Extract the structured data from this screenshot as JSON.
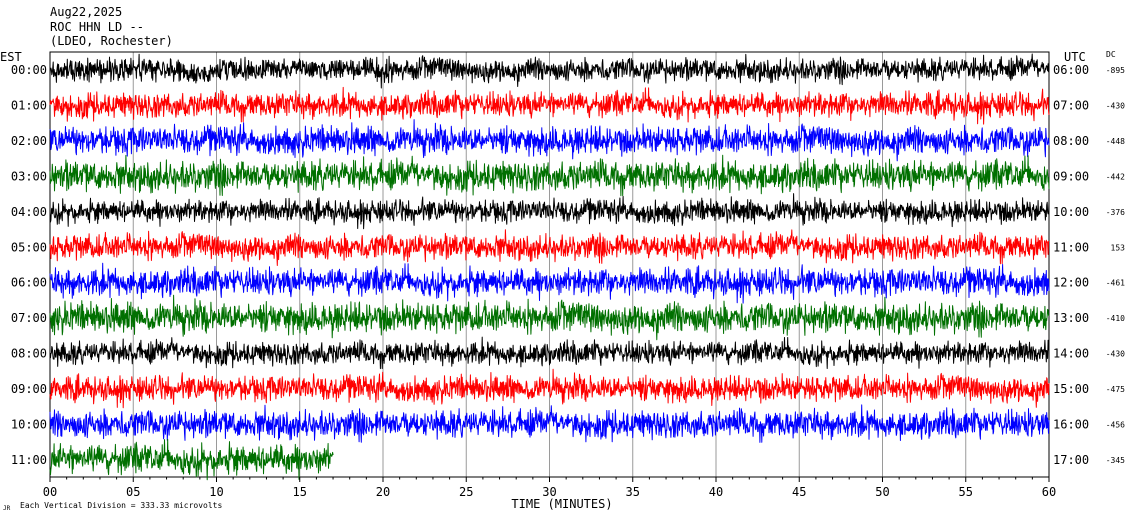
{
  "header": {
    "date": "Aug22,2025",
    "station": "ROC HHN LD --",
    "network": "(LDEO, Rochester)"
  },
  "labels": {
    "left_tz": "EST",
    "right_tz": "UTC",
    "dc": "DC",
    "x_axis": "TIME (MINUTES)",
    "scale_note": "Each Vertical Division = 333.33 microvolts",
    "corner_mark": "JR"
  },
  "chart_data": {
    "type": "line",
    "title": "ROC HHN LD --",
    "xlabel": "TIME (MINUTES)",
    "xlim": [
      0,
      60
    ],
    "x_ticks": [
      "00",
      "05",
      "10",
      "15",
      "20",
      "25",
      "30",
      "35",
      "40",
      "45",
      "50",
      "55",
      "60"
    ],
    "grid": true,
    "series": [
      {
        "left": "00:00",
        "right": "06:00",
        "dc": "-895",
        "color": "#000000",
        "extent_minutes": 60
      },
      {
        "left": "01:00",
        "right": "07:00",
        "dc": "-430",
        "color": "#ff0000",
        "extent_minutes": 60
      },
      {
        "left": "02:00",
        "right": "08:00",
        "dc": "-448",
        "color": "#0000ff",
        "extent_minutes": 60
      },
      {
        "left": "03:00",
        "right": "09:00",
        "dc": "-442",
        "color": "#007000",
        "extent_minutes": 60
      },
      {
        "left": "04:00",
        "right": "10:00",
        "dc": "-376",
        "color": "#000000",
        "extent_minutes": 60
      },
      {
        "left": "05:00",
        "right": "11:00",
        "dc": "153",
        "color": "#ff0000",
        "extent_minutes": 60
      },
      {
        "left": "06:00",
        "right": "12:00",
        "dc": "-461",
        "color": "#0000ff",
        "extent_minutes": 60
      },
      {
        "left": "07:00",
        "right": "13:00",
        "dc": "-410",
        "color": "#007000",
        "extent_minutes": 60
      },
      {
        "left": "08:00",
        "right": "14:00",
        "dc": "-430",
        "color": "#000000",
        "extent_minutes": 60
      },
      {
        "left": "09:00",
        "right": "15:00",
        "dc": "-475",
        "color": "#ff0000",
        "extent_minutes": 60
      },
      {
        "left": "10:00",
        "right": "16:00",
        "dc": "-456",
        "color": "#0000ff",
        "extent_minutes": 60
      },
      {
        "left": "11:00",
        "right": "17:00",
        "dc": "-345",
        "color": "#007000",
        "extent_minutes": 17
      }
    ]
  }
}
